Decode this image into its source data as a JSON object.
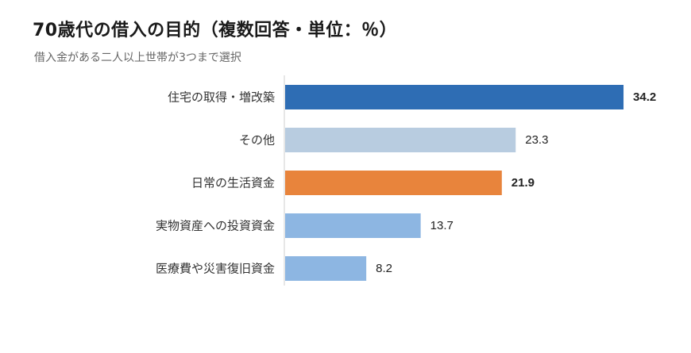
{
  "chart_data": {
    "type": "bar",
    "orientation": "horizontal",
    "title": "70歳代の借入の目的（複数回答・単位：％）",
    "subtitle": "借入金がある二人以上世帯が3つまで選択",
    "categories": [
      "住宅の取得・増改築",
      "その他",
      "日常の生活資金",
      "実物資産への投資資金",
      "医療費や災害復旧資金"
    ],
    "values": [
      34.2,
      23.3,
      21.9,
      13.7,
      8.2
    ],
    "value_labels": [
      "34.2",
      "23.3",
      "21.9",
      "13.7",
      "8.2"
    ],
    "bar_colors": [
      "#2e6db4",
      "#b8cce0",
      "#e8843c",
      "#8db6e2",
      "#8db6e2"
    ],
    "bold_values": [
      true,
      false,
      true,
      false,
      false
    ],
    "xlim": [
      0,
      35
    ],
    "grid": false,
    "legend": "none",
    "xlabel": "",
    "ylabel": ""
  }
}
